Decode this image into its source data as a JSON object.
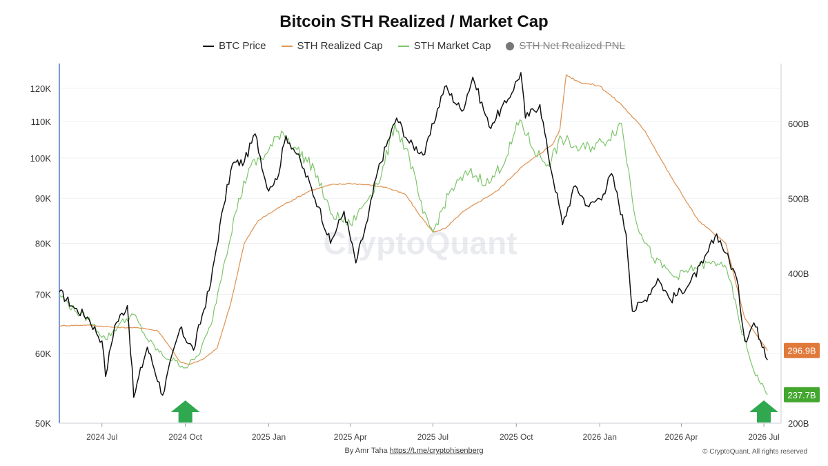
{
  "chart_data": {
    "type": "line",
    "title": "Bitcoin STH Realized / Market Cap",
    "legend": [
      {
        "name": "BTC Price",
        "color": "#111111",
        "kind": "line",
        "disabled": false
      },
      {
        "name": "STH Realized Cap",
        "color": "#e0975a",
        "kind": "line",
        "disabled": false
      },
      {
        "name": "STH Market Cap",
        "color": "#7dc46a",
        "kind": "line",
        "disabled": false
      },
      {
        "name": "STH Net Realized PNL",
        "color": "#777777",
        "kind": "dot",
        "disabled": true
      }
    ],
    "legend_placement": "top-center",
    "x_ticks": [
      "2024 Jul",
      "2024 Oct",
      "2025 Jan",
      "2025 Apr",
      "2025 Jul",
      "2025 Oct",
      "2026 Jan",
      "2026 Apr",
      "2026 Jul"
    ],
    "x_range": [
      "2024-05-15",
      "2026-07-20"
    ],
    "y_left": {
      "scale": "log",
      "ticks": [
        50000,
        60000,
        70000,
        80000,
        90000,
        100000,
        110000,
        120000
      ],
      "tick_labels": [
        "50K",
        "60K",
        "70K",
        "80K",
        "90K",
        "100K",
        "110K",
        "120K"
      ],
      "range": [
        50000,
        128000
      ]
    },
    "y_right": {
      "scale": "linear",
      "ticks": [
        200,
        300,
        400,
        500,
        600
      ],
      "tick_labels": [
        "200B",
        "",
        "400B",
        "500B",
        "600B"
      ],
      "range": [
        200,
        680
      ]
    },
    "grid": true,
    "series": [
      {
        "name": "BTC Price",
        "axis": "left",
        "color": "#111111",
        "points": [
          [
            "2024-05-15",
            70500
          ],
          [
            "2024-06-01",
            67500
          ],
          [
            "2024-06-15",
            66000
          ],
          [
            "2024-07-01",
            62000
          ],
          [
            "2024-07-05",
            56500
          ],
          [
            "2024-07-15",
            64500
          ],
          [
            "2024-07-29",
            68000
          ],
          [
            "2024-08-05",
            53500
          ],
          [
            "2024-08-20",
            61000
          ],
          [
            "2024-09-06",
            53800
          ],
          [
            "2024-09-25",
            64000
          ],
          [
            "2024-10-10",
            60500
          ],
          [
            "2024-10-29",
            72000
          ],
          [
            "2024-11-12",
            88000
          ],
          [
            "2024-11-22",
            98500
          ],
          [
            "2024-12-05",
            99000
          ],
          [
            "2024-12-17",
            106500
          ],
          [
            "2024-12-30",
            92500
          ],
          [
            "2025-01-10",
            94500
          ],
          [
            "2025-01-20",
            106000
          ],
          [
            "2025-02-01",
            101000
          ],
          [
            "2025-02-25",
            88000
          ],
          [
            "2025-03-10",
            80000
          ],
          [
            "2025-03-25",
            87000
          ],
          [
            "2025-04-07",
            76000
          ],
          [
            "2025-04-20",
            85000
          ],
          [
            "2025-05-01",
            96500
          ],
          [
            "2025-05-22",
            111000
          ],
          [
            "2025-06-05",
            104000
          ],
          [
            "2025-06-22",
            101000
          ],
          [
            "2025-07-14",
            120500
          ],
          [
            "2025-08-02",
            113000
          ],
          [
            "2025-08-14",
            123500
          ],
          [
            "2025-09-01",
            108500
          ],
          [
            "2025-09-20",
            115500
          ],
          [
            "2025-10-06",
            125000
          ],
          [
            "2025-10-11",
            111000
          ],
          [
            "2025-10-27",
            115000
          ],
          [
            "2025-11-05",
            101000
          ],
          [
            "2025-11-21",
            84000
          ],
          [
            "2025-12-05",
            93000
          ],
          [
            "2025-12-20",
            88000
          ],
          [
            "2026-01-05",
            91000
          ],
          [
            "2026-01-14",
            96000
          ],
          [
            "2026-01-30",
            82000
          ],
          [
            "2026-02-06",
            67000
          ],
          [
            "2026-02-20",
            69000
          ],
          [
            "2026-03-06",
            73000
          ],
          [
            "2026-03-20",
            69000
          ],
          [
            "2026-04-10",
            72000
          ],
          [
            "2026-04-25",
            76000
          ],
          [
            "2026-05-10",
            82000
          ],
          [
            "2026-05-20",
            78000
          ],
          [
            "2026-06-01",
            73000
          ],
          [
            "2026-06-10",
            62000
          ],
          [
            "2026-06-20",
            65000
          ],
          [
            "2026-07-01",
            61000
          ],
          [
            "2026-07-05",
            59000
          ]
        ]
      },
      {
        "name": "STH Realized Cap",
        "axis": "right",
        "color": "#e0975a",
        "points": [
          [
            "2024-05-15",
            330
          ],
          [
            "2024-06-15",
            331
          ],
          [
            "2024-07-15",
            328
          ],
          [
            "2024-08-15",
            327
          ],
          [
            "2024-09-01",
            323
          ],
          [
            "2024-09-15",
            300
          ],
          [
            "2024-09-25",
            282
          ],
          [
            "2024-10-05",
            278
          ],
          [
            "2024-10-20",
            285
          ],
          [
            "2024-11-05",
            300
          ],
          [
            "2024-11-20",
            360
          ],
          [
            "2024-12-05",
            440
          ],
          [
            "2024-12-20",
            470
          ],
          [
            "2025-01-15",
            490
          ],
          [
            "2025-02-15",
            510
          ],
          [
            "2025-03-10",
            518
          ],
          [
            "2025-04-01",
            520
          ],
          [
            "2025-04-20",
            518
          ],
          [
            "2025-05-10",
            515
          ],
          [
            "2025-06-01",
            505
          ],
          [
            "2025-06-15",
            480
          ],
          [
            "2025-07-01",
            455
          ],
          [
            "2025-07-15",
            460
          ],
          [
            "2025-08-01",
            480
          ],
          [
            "2025-08-20",
            495
          ],
          [
            "2025-09-10",
            510
          ],
          [
            "2025-10-05",
            540
          ],
          [
            "2025-10-25",
            558
          ],
          [
            "2025-11-10",
            572
          ],
          [
            "2025-11-18",
            592
          ],
          [
            "2025-11-25",
            665
          ],
          [
            "2025-12-10",
            655
          ],
          [
            "2026-01-01",
            650
          ],
          [
            "2026-01-25",
            625
          ],
          [
            "2026-02-20",
            590
          ],
          [
            "2026-03-20",
            530
          ],
          [
            "2026-04-20",
            470
          ],
          [
            "2026-05-20",
            440
          ],
          [
            "2026-06-10",
            340
          ],
          [
            "2026-07-05",
            297
          ]
        ]
      },
      {
        "name": "STH Market Cap",
        "axis": "right",
        "color": "#7dc46a",
        "points": [
          [
            "2024-05-15",
            372
          ],
          [
            "2024-06-01",
            350
          ],
          [
            "2024-06-15",
            340
          ],
          [
            "2024-07-05",
            312
          ],
          [
            "2024-07-20",
            332
          ],
          [
            "2024-08-05",
            345
          ],
          [
            "2024-08-20",
            312
          ],
          [
            "2024-09-06",
            290
          ],
          [
            "2024-09-20",
            283
          ],
          [
            "2024-10-01",
            274
          ],
          [
            "2024-10-15",
            290
          ],
          [
            "2024-10-29",
            330
          ],
          [
            "2024-11-12",
            410
          ],
          [
            "2024-11-25",
            480
          ],
          [
            "2024-12-10",
            540
          ],
          [
            "2024-12-30",
            560
          ],
          [
            "2025-01-15",
            590
          ],
          [
            "2025-02-01",
            565
          ],
          [
            "2025-02-20",
            540
          ],
          [
            "2025-03-10",
            480
          ],
          [
            "2025-04-01",
            465
          ],
          [
            "2025-04-15",
            490
          ],
          [
            "2025-05-05",
            530
          ],
          [
            "2025-05-20",
            600
          ],
          [
            "2025-06-05",
            555
          ],
          [
            "2025-06-20",
            480
          ],
          [
            "2025-07-01",
            455
          ],
          [
            "2025-07-20",
            510
          ],
          [
            "2025-08-10",
            535
          ],
          [
            "2025-09-01",
            520
          ],
          [
            "2025-09-20",
            555
          ],
          [
            "2025-10-05",
            605
          ],
          [
            "2025-10-20",
            565
          ],
          [
            "2025-11-05",
            545
          ],
          [
            "2025-11-20",
            580
          ],
          [
            "2025-12-10",
            565
          ],
          [
            "2026-01-05",
            575
          ],
          [
            "2026-01-25",
            600
          ],
          [
            "2026-02-10",
            470
          ],
          [
            "2026-03-01",
            420
          ],
          [
            "2026-03-25",
            395
          ],
          [
            "2026-04-20",
            410
          ],
          [
            "2026-05-15",
            415
          ],
          [
            "2026-05-25",
            390
          ],
          [
            "2026-06-05",
            330
          ],
          [
            "2026-06-20",
            270
          ],
          [
            "2026-07-05",
            238
          ]
        ]
      }
    ],
    "end_labels": [
      {
        "text": "296.9B",
        "color": "#e0793a"
      },
      {
        "text": "237.7B",
        "color": "#43a72f"
      }
    ],
    "annotations": [
      {
        "kind": "up-arrow",
        "date": "2024-10-01",
        "color": "#2fa84f"
      },
      {
        "kind": "up-arrow",
        "date": "2026-07-01",
        "color": "#2fa84f"
      }
    ],
    "watermark": "CryptoQuant"
  },
  "footer": {
    "credit_prefix": "By Amr Taha",
    "credit_link": "https://t.me/cryptohisenberg",
    "copyright": "© CryptoQuant. All rights reserved"
  }
}
